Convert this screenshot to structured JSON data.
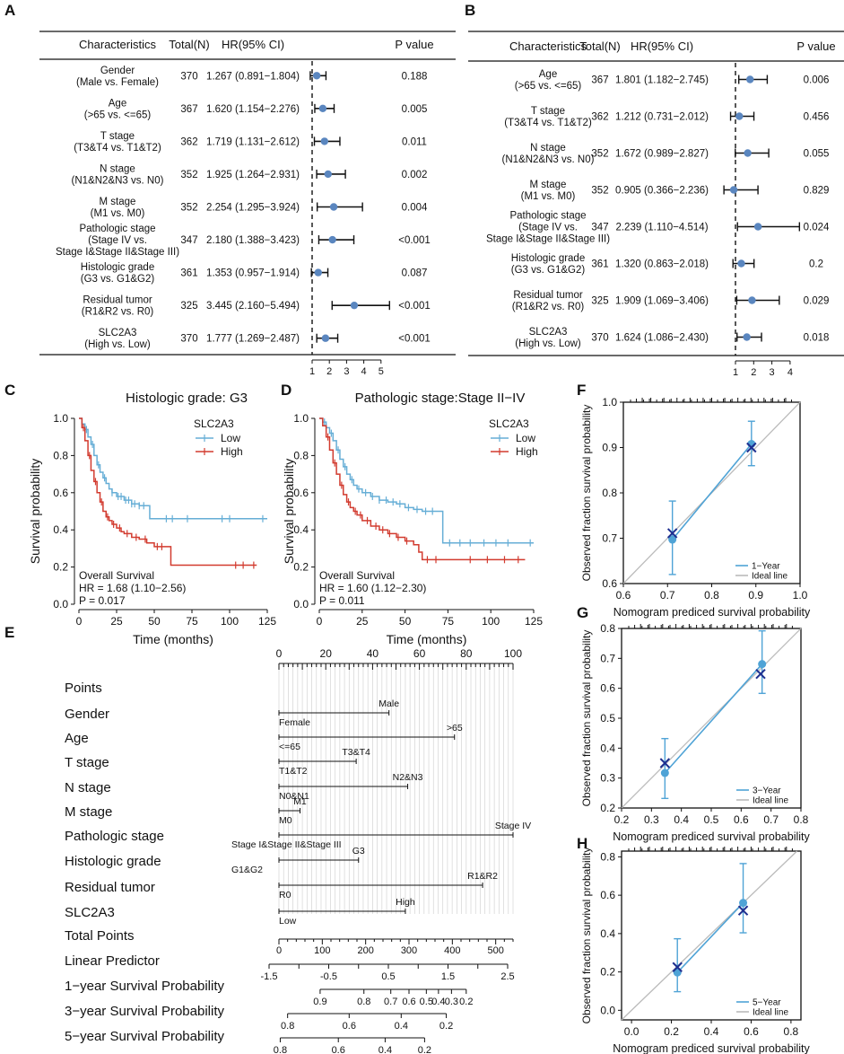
{
  "colors": {
    "low": "#66AED6",
    "high": "#D23B2F",
    "point": "#5A86BF",
    "ideal": "#BBBBBB",
    "calib": "#4FA3D6",
    "cross": "#1E2F8F"
  },
  "chart_data": [
    {
      "id": "A",
      "panel_label": "A",
      "type": "forest",
      "columns": {
        "char": "Characteristics",
        "total": "Total(N)",
        "hr": "HR(95% CI)",
        "p": "P value"
      },
      "axis_ticks": [
        1,
        2,
        3,
        4,
        5
      ],
      "ref_line": 1,
      "rows": [
        {
          "label": [
            "Gender",
            "(Male vs. Female)"
          ],
          "n": "370",
          "hr_text": "1.267 (0.891−1.804)",
          "p": "0.188",
          "hr": 1.267,
          "lo": 0.891,
          "hi": 1.804
        },
        {
          "label": [
            "Age",
            "(>65 vs. <=65)"
          ],
          "n": "367",
          "hr_text": "1.620 (1.154−2.276)",
          "p": "0.005",
          "hr": 1.62,
          "lo": 1.154,
          "hi": 2.276
        },
        {
          "label": [
            "T stage",
            "(T3&T4 vs. T1&T2)"
          ],
          "n": "362",
          "hr_text": "1.719 (1.131−2.612)",
          "p": "0.011",
          "hr": 1.719,
          "lo": 1.131,
          "hi": 2.612
        },
        {
          "label": [
            "N stage",
            "(N1&N2&N3 vs. N0)"
          ],
          "n": "352",
          "hr_text": "1.925 (1.264−2.931)",
          "p": "0.002",
          "hr": 1.925,
          "lo": 1.264,
          "hi": 2.931
        },
        {
          "label": [
            "M stage",
            "(M1 vs. M0)"
          ],
          "n": "352",
          "hr_text": "2.254 (1.295−3.924)",
          "p": "0.004",
          "hr": 2.254,
          "lo": 1.295,
          "hi": 3.924
        },
        {
          "label": [
            "Pathologic stage",
            "(Stage IV vs.",
            "Stage I&Stage II&Stage III)"
          ],
          "n": "347",
          "hr_text": "2.180 (1.388−3.423)",
          "p": "<0.001",
          "hr": 2.18,
          "lo": 1.388,
          "hi": 3.423
        },
        {
          "label": [
            "Histologic grade",
            "(G3 vs. G1&G2)"
          ],
          "n": "361",
          "hr_text": "1.353 (0.957−1.914)",
          "p": "0.087",
          "hr": 1.353,
          "lo": 0.957,
          "hi": 1.914
        },
        {
          "label": [
            "Residual tumor",
            "(R1&R2 vs. R0)"
          ],
          "n": "325",
          "hr_text": "3.445 (2.160−5.494)",
          "p": "<0.001",
          "hr": 3.445,
          "lo": 2.16,
          "hi": 5.494
        },
        {
          "label": [
            "SLC2A3",
            "(High vs. Low)"
          ],
          "n": "370",
          "hr_text": "1.777 (1.269−2.487)",
          "p": "<0.001",
          "hr": 1.777,
          "lo": 1.269,
          "hi": 2.487
        }
      ]
    },
    {
      "id": "B",
      "panel_label": "B",
      "type": "forest",
      "columns": {
        "char": "Characteristics",
        "total": "Total(N)",
        "hr": "HR(95% CI)",
        "p": "P value"
      },
      "axis_ticks": [
        1,
        2,
        3,
        4
      ],
      "ref_line": 1,
      "rows": [
        {
          "label": [
            "Age",
            "(>65 vs. <=65)"
          ],
          "n": "367",
          "hr_text": "1.801 (1.182−2.745)",
          "p": "0.006",
          "hr": 1.801,
          "lo": 1.182,
          "hi": 2.745
        },
        {
          "label": [
            "T stage",
            "(T3&T4 vs. T1&T2)"
          ],
          "n": "362",
          "hr_text": "1.212 (0.731−2.012)",
          "p": "0.456",
          "hr": 1.212,
          "lo": 0.731,
          "hi": 2.012
        },
        {
          "label": [
            "N stage",
            "(N1&N2&N3 vs. N0)"
          ],
          "n": "352",
          "hr_text": "1.672 (0.989−2.827)",
          "p": "0.055",
          "hr": 1.672,
          "lo": 0.989,
          "hi": 2.827
        },
        {
          "label": [
            "M stage",
            "(M1 vs. M0)"
          ],
          "n": "352",
          "hr_text": "0.905 (0.366−2.236)",
          "p": "0.829",
          "hr": 0.905,
          "lo": 0.366,
          "hi": 2.236
        },
        {
          "label": [
            "Pathologic stage",
            "(Stage IV vs.",
            "Stage I&Stage II&Stage III)"
          ],
          "n": "347",
          "hr_text": "2.239 (1.110−4.514)",
          "p": "0.024",
          "hr": 2.239,
          "lo": 1.11,
          "hi": 4.514
        },
        {
          "label": [
            "Histologic grade",
            "(G3 vs. G1&G2)"
          ],
          "n": "361",
          "hr_text": "1.320 (0.863−2.018)",
          "p": "0.2",
          "hr": 1.32,
          "lo": 0.863,
          "hi": 2.018
        },
        {
          "label": [
            "Residual tumor",
            "(R1&R2 vs. R0)"
          ],
          "n": "325",
          "hr_text": "1.909 (1.069−3.406)",
          "p": "0.029",
          "hr": 1.909,
          "lo": 1.069,
          "hi": 3.406
        },
        {
          "label": [
            "SLC2A3",
            "(High vs. Low)"
          ],
          "n": "370",
          "hr_text": "1.624 (1.086−2.430)",
          "p": "0.018",
          "hr": 1.624,
          "lo": 1.086,
          "hi": 2.43
        }
      ]
    },
    {
      "id": "C",
      "panel_label": "C",
      "type": "line",
      "title": "Histologic grade: G3",
      "xlabel": "Time (months)",
      "ylabel": "Survival probability",
      "xlim": [
        0,
        125
      ],
      "ylim": [
        0,
        1
      ],
      "xticks": [
        0,
        25,
        50,
        75,
        100,
        125
      ],
      "yticks": [
        0,
        0.2,
        0.4,
        0.6,
        0.8,
        1.0
      ],
      "legend_title": "SLC2A3",
      "annotation": [
        "Overall Survival",
        "HR = 1.68 (1.10−2.56)",
        "P = 0.017"
      ],
      "series": [
        {
          "name": "Low",
          "x": [
            0,
            2,
            4,
            6,
            8,
            10,
            12,
            14,
            16,
            18,
            20,
            22,
            25,
            30,
            35,
            40,
            47,
            125
          ],
          "y": [
            1.0,
            0.97,
            0.94,
            0.9,
            0.86,
            0.8,
            0.75,
            0.71,
            0.68,
            0.65,
            0.62,
            0.6,
            0.58,
            0.56,
            0.54,
            0.53,
            0.46,
            0.46
          ],
          "censor_x": [
            5,
            9,
            13,
            17,
            22,
            26,
            28,
            31,
            33,
            35,
            37,
            40,
            43,
            58,
            62,
            72,
            95,
            100,
            122
          ]
        },
        {
          "name": "High",
          "x": [
            0,
            2,
            4,
            6,
            8,
            10,
            12,
            14,
            16,
            18,
            20,
            22,
            25,
            28,
            30,
            35,
            40,
            45,
            50,
            60,
            61,
            118
          ],
          "y": [
            1.0,
            0.95,
            0.88,
            0.8,
            0.72,
            0.66,
            0.6,
            0.55,
            0.5,
            0.47,
            0.45,
            0.43,
            0.41,
            0.39,
            0.38,
            0.36,
            0.35,
            0.33,
            0.31,
            0.31,
            0.21,
            0.21
          ],
          "censor_x": [
            3,
            7,
            11,
            15,
            19,
            23,
            27,
            32,
            38,
            44,
            52,
            55,
            104,
            109,
            116
          ]
        }
      ]
    },
    {
      "id": "D",
      "panel_label": "D",
      "type": "line",
      "title": "Pathologic stage:Stage II−IV",
      "xlabel": "Time (months)",
      "ylabel": "Survival probability",
      "xlim": [
        0,
        125
      ],
      "ylim": [
        0,
        1
      ],
      "xticks": [
        0,
        25,
        50,
        75,
        100,
        125
      ],
      "yticks": [
        0,
        0.2,
        0.4,
        0.6,
        0.8,
        1.0
      ],
      "legend_title": "SLC2A3",
      "annotation": [
        "Overall Survival",
        "HR = 1.60 (1.12−2.30)",
        "P = 0.011"
      ],
      "series": [
        {
          "name": "Low",
          "x": [
            0,
            2,
            4,
            6,
            8,
            10,
            12,
            14,
            16,
            18,
            20,
            22,
            25,
            30,
            35,
            40,
            45,
            50,
            55,
            60,
            65,
            70,
            72,
            125
          ],
          "y": [
            1.0,
            0.98,
            0.95,
            0.92,
            0.88,
            0.83,
            0.78,
            0.74,
            0.7,
            0.67,
            0.64,
            0.62,
            0.6,
            0.58,
            0.56,
            0.55,
            0.54,
            0.52,
            0.51,
            0.5,
            0.5,
            0.5,
            0.33,
            0.33
          ],
          "censor_x": [
            3,
            7,
            11,
            15,
            19,
            23,
            27,
            31,
            35,
            39,
            43,
            47,
            52,
            57,
            62,
            66,
            76,
            82,
            88,
            96,
            103,
            110,
            123
          ]
        },
        {
          "name": "High",
          "x": [
            0,
            2,
            4,
            6,
            8,
            10,
            12,
            14,
            16,
            18,
            20,
            22,
            25,
            30,
            35,
            40,
            45,
            50,
            55,
            58,
            60,
            120
          ],
          "y": [
            1.0,
            0.96,
            0.9,
            0.83,
            0.76,
            0.7,
            0.64,
            0.59,
            0.55,
            0.52,
            0.5,
            0.48,
            0.45,
            0.42,
            0.4,
            0.38,
            0.36,
            0.34,
            0.32,
            0.28,
            0.24,
            0.24
          ],
          "censor_x": [
            5,
            9,
            13,
            17,
            21,
            24,
            28,
            33,
            37,
            41,
            46,
            51,
            63,
            68,
            88,
            98,
            108,
            116
          ]
        }
      ]
    },
    {
      "id": "E",
      "panel_label": "E",
      "type": "nomogram",
      "scales": [
        {
          "name": "Points",
          "ticks": [
            "0",
            "20",
            "40",
            "60",
            "80",
            "100"
          ]
        },
        {
          "name": "Gender",
          "labels": [
            "Female",
            "Male"
          ]
        },
        {
          "name": "Age",
          "labels": [
            "<=65",
            ">65"
          ]
        },
        {
          "name": "T stage",
          "labels": [
            "T1&T2",
            "T3&T4"
          ]
        },
        {
          "name": "N stage",
          "labels": [
            "N0&N1",
            "N2&N3"
          ]
        },
        {
          "name": "M stage",
          "labels": [
            "M0",
            "M1"
          ]
        },
        {
          "name": "Pathologic stage",
          "labels": [
            "Stage I&Stage II&Stage III",
            "Stage IV"
          ]
        },
        {
          "name": "Histologic grade",
          "labels": [
            "G1&G2",
            "G3"
          ]
        },
        {
          "name": "Residual tumor",
          "labels": [
            "R0",
            "R1&R2"
          ]
        },
        {
          "name": "SLC2A3",
          "labels": [
            "Low",
            "High"
          ]
        },
        {
          "name": "Total Points",
          "ticks": [
            "0",
            "100",
            "200",
            "300",
            "400",
            "500"
          ]
        },
        {
          "name": "Linear Predictor",
          "ticks": [
            "-1.5",
            "-0.5",
            "0.5",
            "1.5",
            "2.5"
          ]
        },
        {
          "name": "1−year Survival Probability",
          "ticks": [
            "0.9",
            "0.8",
            "0.7",
            "0.6",
            "0.5",
            "0.4",
            "0.3",
            "0.2"
          ]
        },
        {
          "name": "3−year Survival Probability",
          "ticks": [
            "0.8",
            "0.6",
            "0.4",
            "0.2"
          ]
        },
        {
          "name": "5−year Survival Probability",
          "ticks": [
            "0.8",
            "0.6",
            "0.4",
            "0.2"
          ]
        }
      ],
      "points": {
        "Gender": [
          0,
          47
        ],
        "Age": [
          0,
          75
        ],
        "T stage": [
          0,
          33
        ],
        "N stage": [
          0,
          55
        ],
        "M stage": [
          0,
          9
        ],
        "Pathologic stage": [
          0,
          100
        ],
        "Histologic grade": [
          0,
          34
        ],
        "Residual tumor": [
          0,
          87
        ],
        "SLC2A3": [
          0,
          54
        ]
      },
      "total_points_ticks": [
        0,
        100,
        200,
        300,
        400,
        500
      ],
      "total_points_range": [
        0,
        540
      ],
      "lp_ticks": [
        -1.5,
        -0.5,
        0.5,
        1.5,
        2.5
      ],
      "lp_range": [
        -1.5,
        2.5
      ],
      "prob1": [
        0.9,
        0.8,
        0.7,
        0.6,
        0.5,
        0.4,
        0.3,
        0.2
      ],
      "prob1_pts": [
        95,
        196,
        258,
        300,
        340,
        368,
        398,
        432
      ],
      "prob3": [
        0.8,
        0.6,
        0.4,
        0.2
      ],
      "prob3_pts": [
        20,
        162,
        282,
        386
      ],
      "prob5": [
        0.8,
        0.6,
        0.4,
        0.2
      ],
      "prob5_pts": [
        3,
        137,
        245,
        336
      ]
    },
    {
      "id": "F",
      "panel_label": "F",
      "type": "line",
      "xlabel": "Nomogram prediced survival probability",
      "ylabel": "Observed fraction survival probability",
      "xlim": [
        0.6,
        1.0
      ],
      "ylim": [
        0.6,
        1.0
      ],
      "xticks": [
        "0.6",
        "0.7",
        "0.8",
        "0.9",
        "1.0"
      ],
      "yticks": [
        "0.6",
        "0.7",
        "0.8",
        "0.9",
        "1.0"
      ],
      "series": [
        {
          "name": "1−Year",
          "x": [
            0.711,
            0.89
          ],
          "y": [
            0.697,
            0.908
          ],
          "err_lo": [
            0.62,
            0.86
          ],
          "err_hi": [
            0.782,
            0.958
          ],
          "cross_x": [
            0.711,
            0.89
          ],
          "cross_y": [
            0.711,
            0.9
          ]
        }
      ],
      "legend": [
        "1−Year",
        "Ideal line"
      ],
      "rug": true
    },
    {
      "id": "G",
      "panel_label": "G",
      "type": "line",
      "xlabel": "Nomogram prediced survival probability",
      "ylabel": "Observed fraction survival probability",
      "xlim": [
        0.2,
        0.8
      ],
      "ylim": [
        0.2,
        0.8
      ],
      "xticks": [
        "0.2",
        "0.3",
        "0.4",
        "0.5",
        "0.6",
        "0.7",
        "0.8"
      ],
      "yticks": [
        "0.2",
        "0.3",
        "0.4",
        "0.5",
        "0.6",
        "0.7",
        "0.8"
      ],
      "series": [
        {
          "name": "3−Year",
          "x": [
            0.345,
            0.67
          ],
          "y": [
            0.317,
            0.681
          ],
          "err_lo": [
            0.232,
            0.583
          ],
          "err_hi": [
            0.432,
            0.792
          ],
          "cross_x": [
            0.345,
            0.665
          ],
          "cross_y": [
            0.35,
            0.648
          ]
        }
      ],
      "legend": [
        "3−Year",
        "Ideal line"
      ],
      "rug": true
    },
    {
      "id": "H",
      "panel_label": "H",
      "type": "line",
      "xlabel": "Nomogram prediced survival probability",
      "ylabel": "Observed fraction survival probability",
      "xlim": [
        -0.05,
        0.85
      ],
      "ylim": [
        -0.05,
        0.83
      ],
      "xticks": [
        "0.0",
        "0.2",
        "0.4",
        "0.6",
        "0.8"
      ],
      "yticks": [
        "0.0",
        "0.2",
        "0.4",
        "0.6",
        "0.8"
      ],
      "series": [
        {
          "name": "5−Year",
          "x": [
            0.23,
            0.56
          ],
          "y": [
            0.197,
            0.56
          ],
          "err_lo": [
            0.097,
            0.404
          ],
          "err_hi": [
            0.373,
            0.765
          ],
          "cross_x": [
            0.23,
            0.56
          ],
          "cross_y": [
            0.225,
            0.52
          ]
        }
      ],
      "legend": [
        "5−Year",
        "Ideal line"
      ],
      "rug": true
    }
  ]
}
